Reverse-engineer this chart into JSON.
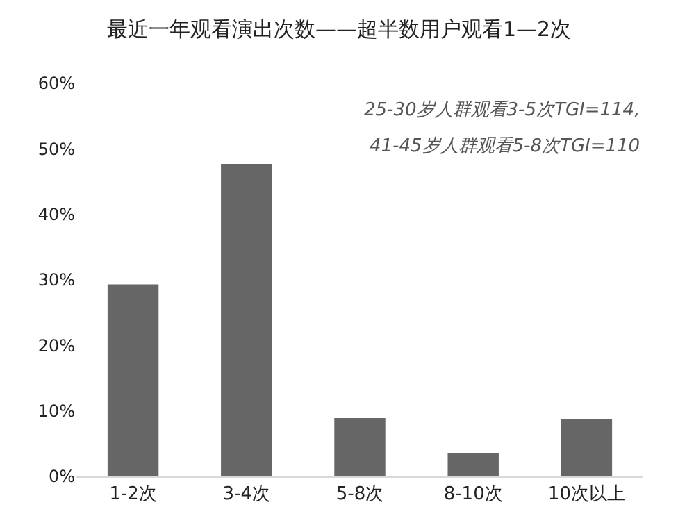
{
  "chart_data": {
    "type": "bar",
    "title": "最近一年观看演出次数——超半数用户观看1—2次",
    "categories": [
      "1-2次",
      "3-4次",
      "5-8次",
      "8-10次",
      "10次以上"
    ],
    "values": [
      29.3,
      47.7,
      8.9,
      3.6,
      8.7
    ],
    "color": "#666666",
    "ylim": [
      0,
      60
    ],
    "yticks": [
      {
        "value": 0,
        "label": "0%"
      },
      {
        "value": 10,
        "label": "10%"
      },
      {
        "value": 20,
        "label": "20%"
      },
      {
        "value": 30,
        "label": "30%"
      },
      {
        "value": 40,
        "label": "40%"
      },
      {
        "value": 50,
        "label": "50%"
      },
      {
        "value": 60,
        "label": "60%"
      }
    ],
    "annotations": [
      "25-30岁人群观看3-5次TGI=114,",
      "41-45岁人群观看5-8次TGI=110"
    ]
  }
}
